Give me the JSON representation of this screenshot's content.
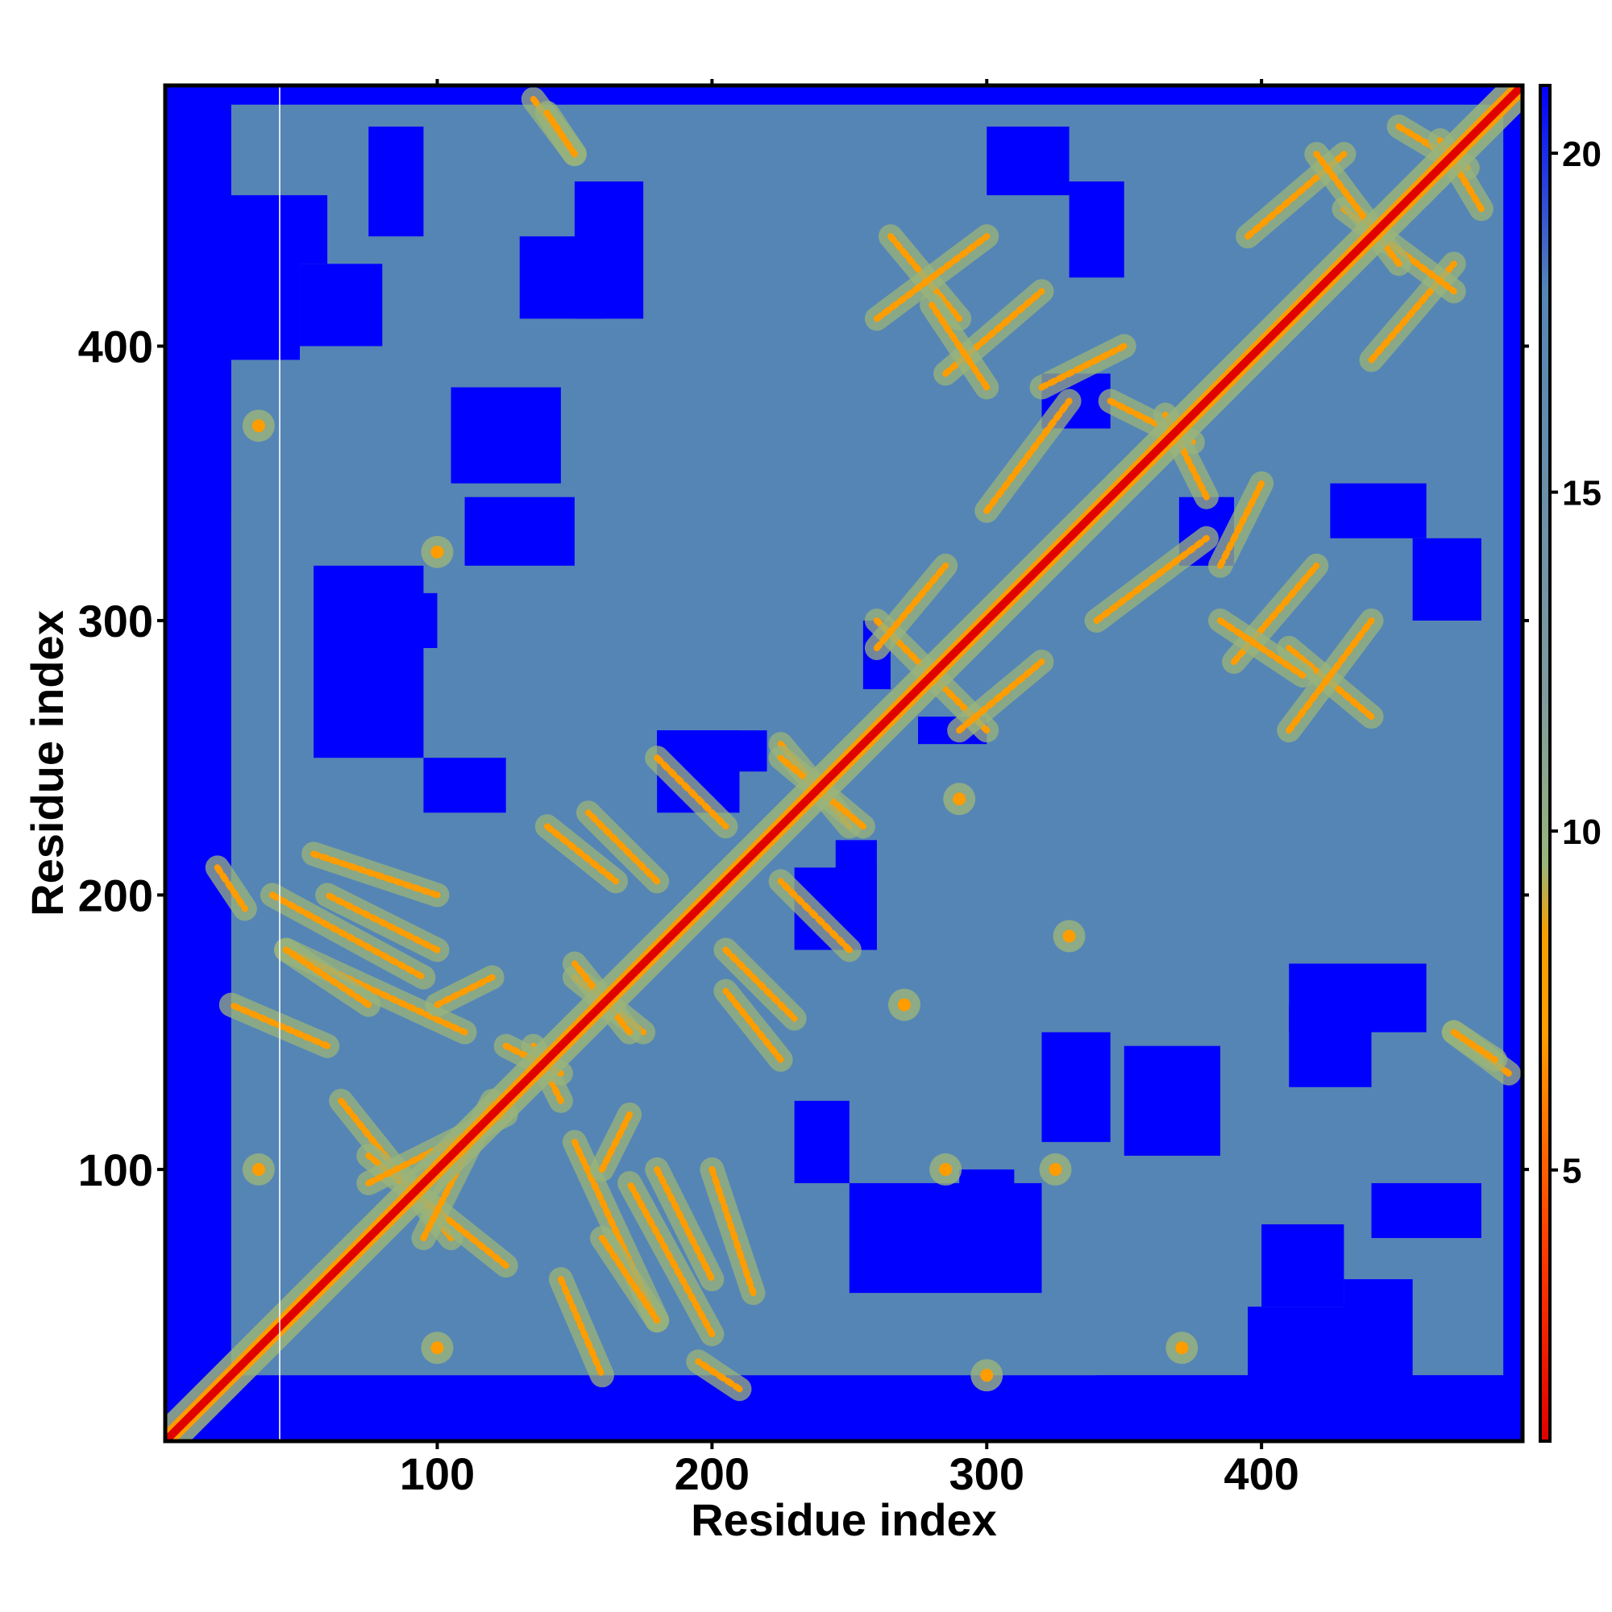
{
  "chart_data": {
    "type": "heatmap",
    "title": "",
    "xlabel": "Residue index",
    "ylabel": "Residue index",
    "xlim": [
      1,
      495
    ],
    "ylim": [
      1,
      495
    ],
    "x_ticks": [
      100,
      200,
      300,
      400
    ],
    "y_ticks": [
      100,
      200,
      300,
      400
    ],
    "x_tick_labels": [
      "100",
      "200",
      "300",
      "400"
    ],
    "y_tick_labels": [
      "100",
      "200",
      "300",
      "400"
    ],
    "grid": false,
    "value_description": "pairwise residue distance map, symmetric, low values on the diagonal",
    "colorbar": {
      "position": "right",
      "range": [
        1,
        21
      ],
      "ticks": [
        5,
        10,
        15,
        20
      ],
      "tick_labels": [
        "5",
        "10",
        "15",
        "20"
      ],
      "stops": [
        {
          "value": 1,
          "color": "#e00000"
        },
        {
          "value": 4,
          "color": "#ff4000"
        },
        {
          "value": 7,
          "color": "#ff9c00"
        },
        {
          "value": 8.5,
          "color": "#f5a000"
        },
        {
          "value": 9.5,
          "color": "#9ab47a"
        },
        {
          "value": 12,
          "color": "#7f9a9e"
        },
        {
          "value": 18,
          "color": "#5585b5"
        },
        {
          "value": 21,
          "color": "#0000ff"
        }
      ]
    },
    "colors": {
      "near": "#e00000",
      "contact": "#ff9c00",
      "medium": "#9ab47a",
      "background": "#5585b5",
      "far": "#0000ff"
    },
    "features": {
      "diagonal": {
        "from": 1,
        "to": 495
      },
      "far_regions": [
        {
          "x": [
            1,
            25
          ],
          "y": [
            1,
            495
          ]
        },
        {
          "x": [
            1,
            495
          ],
          "y": [
            488,
            495
          ]
        },
        {
          "x": [
            340,
            495
          ],
          "y": [
            1,
            25
          ]
        },
        {
          "x": [
            55,
            95
          ],
          "y": [
            250,
            320
          ]
        },
        {
          "x": [
            105,
            145
          ],
          "y": [
            350,
            385
          ]
        },
        {
          "x": [
            15,
            50
          ],
          "y": [
            395,
            445
          ]
        },
        {
          "x": [
            150,
            175
          ],
          "y": [
            410,
            460
          ]
        },
        {
          "x": [
            290,
            310
          ],
          "y": [
            60,
            100
          ]
        },
        {
          "x": [
            320,
            345
          ],
          "y": [
            110,
            150
          ]
        },
        {
          "x": [
            410,
            440
          ],
          "y": [
            130,
            160
          ]
        },
        {
          "x": [
            400,
            430
          ],
          "y": [
            50,
            80
          ]
        },
        {
          "x": [
            245,
            260
          ],
          "y": [
            180,
            220
          ]
        },
        {
          "x": [
            275,
            300
          ],
          "y": [
            255,
            265
          ]
        },
        {
          "x": [
            370,
            390
          ],
          "y": [
            320,
            345
          ]
        },
        {
          "x": [
            430,
            455
          ],
          "y": [
            15,
            60
          ]
        },
        {
          "x": [
            440,
            480
          ],
          "y": [
            75,
            95
          ]
        },
        {
          "x": [
            330,
            350
          ],
          "y": [
            425,
            460
          ]
        },
        {
          "x": [
            180,
            210
          ],
          "y": [
            230,
            260
          ]
        },
        {
          "x": [
            455,
            480
          ],
          "y": [
            300,
            330
          ]
        },
        {
          "x": [
            230,
            250
          ],
          "y": [
            95,
            125
          ]
        }
      ],
      "contact_lines": [
        {
          "p0": [
            40,
            200
          ],
          "p1": [
            95,
            170
          ]
        },
        {
          "p0": [
            45,
            180
          ],
          "p1": [
            110,
            150
          ]
        },
        {
          "p0": [
            120,
            170
          ],
          "p1": [
            100,
            160
          ]
        },
        {
          "p0": [
            65,
            125
          ],
          "p1": [
            105,
            75
          ]
        },
        {
          "p0": [
            75,
            95
          ],
          "p1": [
            125,
            120
          ]
        },
        {
          "p0": [
            145,
            60
          ],
          "p1": [
            160,
            25
          ]
        },
        {
          "p0": [
            160,
            75
          ],
          "p1": [
            180,
            45
          ]
        },
        {
          "p0": [
            180,
            100
          ],
          "p1": [
            200,
            60
          ]
        },
        {
          "p0": [
            200,
            100
          ],
          "p1": [
            215,
            55
          ]
        },
        {
          "p0": [
            140,
            225
          ],
          "p1": [
            165,
            205
          ]
        },
        {
          "p0": [
            150,
            170
          ],
          "p1": [
            175,
            150
          ]
        },
        {
          "p0": [
            180,
            250
          ],
          "p1": [
            205,
            225
          ]
        },
        {
          "p0": [
            205,
            180
          ],
          "p1": [
            230,
            155
          ]
        },
        {
          "p0": [
            225,
            255
          ],
          "p1": [
            250,
            225
          ]
        },
        {
          "p0": [
            260,
            300
          ],
          "p1": [
            280,
            280
          ]
        },
        {
          "p0": [
            290,
            260
          ],
          "p1": [
            320,
            285
          ]
        },
        {
          "p0": [
            265,
            440
          ],
          "p1": [
            290,
            410
          ]
        },
        {
          "p0": [
            285,
            390
          ],
          "p1": [
            320,
            420
          ]
        },
        {
          "p0": [
            320,
            385
          ],
          "p1": [
            350,
            400
          ]
        },
        {
          "p0": [
            345,
            380
          ],
          "p1": [
            375,
            365
          ]
        },
        {
          "p0": [
            340,
            300
          ],
          "p1": [
            380,
            330
          ]
        },
        {
          "p0": [
            385,
            300
          ],
          "p1": [
            415,
            280
          ]
        },
        {
          "p0": [
            410,
            260
          ],
          "p1": [
            440,
            300
          ]
        },
        {
          "p0": [
            395,
            440
          ],
          "p1": [
            430,
            470
          ]
        },
        {
          "p0": [
            430,
            450
          ],
          "p1": [
            470,
            420
          ]
        },
        {
          "p0": [
            135,
            490
          ],
          "p1": [
            150,
            470
          ]
        },
        {
          "p0": [
            450,
            480
          ],
          "p1": [
            475,
            465
          ]
        },
        {
          "p0": [
            20,
            210
          ],
          "p1": [
            30,
            195
          ]
        },
        {
          "p0": [
            470,
            150
          ],
          "p1": [
            485,
            140
          ]
        },
        {
          "p0": [
            135,
            145
          ],
          "p1": [
            145,
            125
          ]
        }
      ],
      "contact_spots": [
        {
          "x": 35,
          "y": 371
        },
        {
          "x": 100,
          "y": 325
        },
        {
          "x": 35,
          "y": 100
        },
        {
          "x": 100,
          "y": 35
        },
        {
          "x": 325,
          "y": 100
        },
        {
          "x": 371,
          "y": 35
        },
        {
          "x": 285,
          "y": 100
        },
        {
          "x": 300,
          "y": 25
        },
        {
          "x": 330,
          "y": 185
        },
        {
          "x": 270,
          "y": 160
        },
        {
          "x": 290,
          "y": 235
        }
      ]
    }
  }
}
